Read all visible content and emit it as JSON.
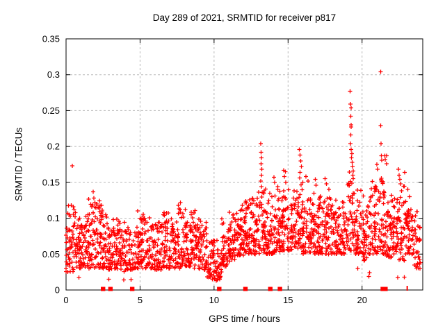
{
  "figure": {
    "background": "#ffffff",
    "title": "Day 289 of 2021, SRMTID for receiver p817",
    "xlabel": "GPS time / hours",
    "ylabel": "SRMTID / TECUs"
  },
  "chart_data": {
    "type": "scatter",
    "title": "Day 289 of 2021, SRMTID for receiver p817",
    "xlabel": "GPS time / hours",
    "ylabel": "SRMTID / TECUs",
    "xlim": [
      0,
      24.1
    ],
    "ylim": [
      0,
      0.35
    ],
    "xticks": [
      0,
      5,
      10,
      15,
      20
    ],
    "xtick_labels": [
      "0",
      "5",
      "10",
      "15",
      "20"
    ],
    "yticks": [
      0,
      0.05,
      0.1,
      0.15,
      0.2,
      0.25,
      0.3,
      0.35
    ],
    "ytick_labels": [
      "0",
      "0.05",
      "0.1",
      "0.15",
      "0.2",
      "0.25",
      "0.3",
      "0.35"
    ],
    "grid": true,
    "legend": "none",
    "marker": "plus",
    "marker_color": "#ff0000",
    "grid_color": "#b8b8b8",
    "axis_color": "#000000",
    "cloud_bins_comment": "dense scatter envelope per half-hour: [x_start, x_end, n_points, y_low, y_high]",
    "cloud_bins": [
      [
        0.0,
        0.5,
        48,
        0.025,
        0.105
      ],
      [
        0.5,
        1.0,
        46,
        0.03,
        0.1
      ],
      [
        1.0,
        1.5,
        44,
        0.03,
        0.095
      ],
      [
        1.5,
        2.0,
        46,
        0.03,
        0.115
      ],
      [
        2.0,
        2.5,
        48,
        0.03,
        0.12
      ],
      [
        2.5,
        3.0,
        44,
        0.028,
        0.095
      ],
      [
        3.0,
        3.5,
        44,
        0.027,
        0.09
      ],
      [
        3.5,
        4.0,
        42,
        0.025,
        0.085
      ],
      [
        4.0,
        4.5,
        40,
        0.028,
        0.08
      ],
      [
        4.5,
        5.0,
        42,
        0.03,
        0.085
      ],
      [
        5.0,
        5.5,
        44,
        0.03,
        0.1
      ],
      [
        5.5,
        6.0,
        42,
        0.03,
        0.09
      ],
      [
        6.0,
        6.5,
        44,
        0.028,
        0.092
      ],
      [
        6.5,
        7.0,
        44,
        0.03,
        0.098
      ],
      [
        7.0,
        7.5,
        44,
        0.03,
        0.095
      ],
      [
        7.5,
        8.0,
        46,
        0.03,
        0.108
      ],
      [
        8.0,
        8.5,
        48,
        0.033,
        0.1
      ],
      [
        8.5,
        9.0,
        48,
        0.03,
        0.102
      ],
      [
        9.0,
        9.5,
        44,
        0.028,
        0.088
      ],
      [
        9.5,
        10.0,
        40,
        0.018,
        0.07
      ],
      [
        10.0,
        10.5,
        40,
        0.014,
        0.062
      ],
      [
        10.5,
        11.0,
        42,
        0.03,
        0.09
      ],
      [
        11.0,
        11.5,
        44,
        0.04,
        0.1
      ],
      [
        11.5,
        12.0,
        46,
        0.048,
        0.108
      ],
      [
        12.0,
        12.5,
        48,
        0.05,
        0.115
      ],
      [
        12.5,
        13.0,
        46,
        0.05,
        0.118
      ],
      [
        13.0,
        13.5,
        48,
        0.05,
        0.128
      ],
      [
        13.5,
        14.0,
        46,
        0.05,
        0.122
      ],
      [
        14.0,
        14.5,
        46,
        0.052,
        0.128
      ],
      [
        14.5,
        15.0,
        46,
        0.055,
        0.132
      ],
      [
        15.0,
        15.5,
        44,
        0.055,
        0.128
      ],
      [
        15.5,
        16.0,
        46,
        0.058,
        0.138
      ],
      [
        16.0,
        16.5,
        44,
        0.05,
        0.128
      ],
      [
        16.5,
        17.0,
        44,
        0.05,
        0.122
      ],
      [
        17.0,
        17.5,
        44,
        0.05,
        0.128
      ],
      [
        17.5,
        18.0,
        44,
        0.05,
        0.122
      ],
      [
        18.0,
        18.5,
        44,
        0.05,
        0.118
      ],
      [
        18.5,
        19.0,
        44,
        0.05,
        0.112
      ],
      [
        19.0,
        19.5,
        48,
        0.055,
        0.148
      ],
      [
        19.5,
        20.0,
        44,
        0.05,
        0.128
      ],
      [
        20.0,
        20.5,
        44,
        0.04,
        0.118
      ],
      [
        20.5,
        21.0,
        44,
        0.05,
        0.138
      ],
      [
        21.0,
        21.5,
        46,
        0.05,
        0.148
      ],
      [
        21.5,
        22.0,
        44,
        0.045,
        0.128
      ],
      [
        22.0,
        22.5,
        44,
        0.05,
        0.122
      ],
      [
        22.5,
        23.0,
        44,
        0.04,
        0.148
      ],
      [
        23.0,
        23.5,
        44,
        0.05,
        0.118
      ],
      [
        23.5,
        23.95,
        36,
        0.03,
        0.1
      ]
    ],
    "spike_points_comment": "individually-read outlier points [hour, TECUs]",
    "spike_points": [
      [
        0.42,
        0.173
      ],
      [
        0.35,
        0.118
      ],
      [
        0.55,
        0.112
      ],
      [
        0.87,
        0.0175
      ],
      [
        1.84,
        0.137
      ],
      [
        1.88,
        0.128
      ],
      [
        1.95,
        0.122
      ],
      [
        2.08,
        0.12
      ],
      [
        2.15,
        0.115
      ],
      [
        2.9,
        0.015
      ],
      [
        3.2,
        0.098
      ],
      [
        3.9,
        0.014
      ],
      [
        4.4,
        0.0146
      ],
      [
        4.85,
        0.11
      ],
      [
        5.2,
        0.103
      ],
      [
        6.78,
        0.096
      ],
      [
        7.7,
        0.112
      ],
      [
        8.05,
        0.112
      ],
      [
        8.45,
        0.105
      ],
      [
        8.74,
        0.09
      ],
      [
        9.9,
        0.015
      ],
      [
        10.15,
        0.013
      ],
      [
        10.3,
        0.02
      ],
      [
        11.3,
        0.105
      ],
      [
        11.9,
        0.118
      ],
      [
        12.2,
        0.122
      ],
      [
        12.3,
        0.115
      ],
      [
        13.15,
        0.204
      ],
      [
        13.18,
        0.192
      ],
      [
        13.2,
        0.184
      ],
      [
        13.17,
        0.176
      ],
      [
        13.22,
        0.168
      ],
      [
        13.19,
        0.16
      ],
      [
        13.16,
        0.152
      ],
      [
        13.21,
        0.144
      ],
      [
        13.24,
        0.136
      ],
      [
        13.9,
        0.13
      ],
      [
        14.05,
        0.157
      ],
      [
        14.1,
        0.15
      ],
      [
        14.3,
        0.144
      ],
      [
        14.7,
        0.167
      ],
      [
        14.75,
        0.158
      ],
      [
        14.82,
        0.165
      ],
      [
        14.85,
        0.15
      ],
      [
        15.75,
        0.196
      ],
      [
        15.8,
        0.188
      ],
      [
        15.85,
        0.18
      ],
      [
        15.9,
        0.172
      ],
      [
        15.82,
        0.164
      ],
      [
        15.78,
        0.156
      ],
      [
        16.0,
        0.15
      ],
      [
        16.2,
        0.158
      ],
      [
        16.35,
        0.152
      ],
      [
        16.85,
        0.154
      ],
      [
        16.9,
        0.146
      ],
      [
        17.5,
        0.155
      ],
      [
        17.6,
        0.148
      ],
      [
        17.75,
        0.14
      ],
      [
        19.2,
        0.277
      ],
      [
        19.22,
        0.259
      ],
      [
        19.25,
        0.254
      ],
      [
        19.23,
        0.242
      ],
      [
        19.26,
        0.23
      ],
      [
        19.27,
        0.227
      ],
      [
        19.24,
        0.216
      ],
      [
        19.21,
        0.204
      ],
      [
        19.26,
        0.196
      ],
      [
        19.3,
        0.19
      ],
      [
        19.28,
        0.184
      ],
      [
        19.32,
        0.178
      ],
      [
        19.35,
        0.172
      ],
      [
        19.4,
        0.166
      ],
      [
        19.38,
        0.16
      ],
      [
        19.7,
        0.03
      ],
      [
        20.47,
        0.019
      ],
      [
        20.5,
        0.024
      ],
      [
        20.85,
        0.142
      ],
      [
        21.0,
        0.175
      ],
      [
        21.05,
        0.168
      ],
      [
        21.26,
        0.304
      ],
      [
        21.26,
        0.229
      ],
      [
        21.27,
        0.204
      ],
      [
        21.3,
        0.187
      ],
      [
        21.32,
        0.181
      ],
      [
        21.55,
        0.187
      ],
      [
        21.57,
        0.182
      ],
      [
        21.65,
        0.187
      ],
      [
        21.65,
        0.176
      ],
      [
        22.4,
        0.0175
      ],
      [
        22.45,
        0.168
      ],
      [
        22.5,
        0.16
      ],
      [
        22.55,
        0.154
      ],
      [
        22.6,
        0.148
      ],
      [
        22.85,
        0.018
      ],
      [
        23.1,
        0.14
      ],
      [
        23.2,
        0.13
      ]
    ],
    "baseline_squares_comment": "red filled squares sitting on y=0 axis, at these hours",
    "baseline_squares": [
      2.5,
      3.0,
      4.47,
      10.35,
      12.12,
      13.8,
      14.45,
      21.4,
      21.58
    ],
    "baseline_thin_tick": 23.05,
    "random_seed": 289
  }
}
